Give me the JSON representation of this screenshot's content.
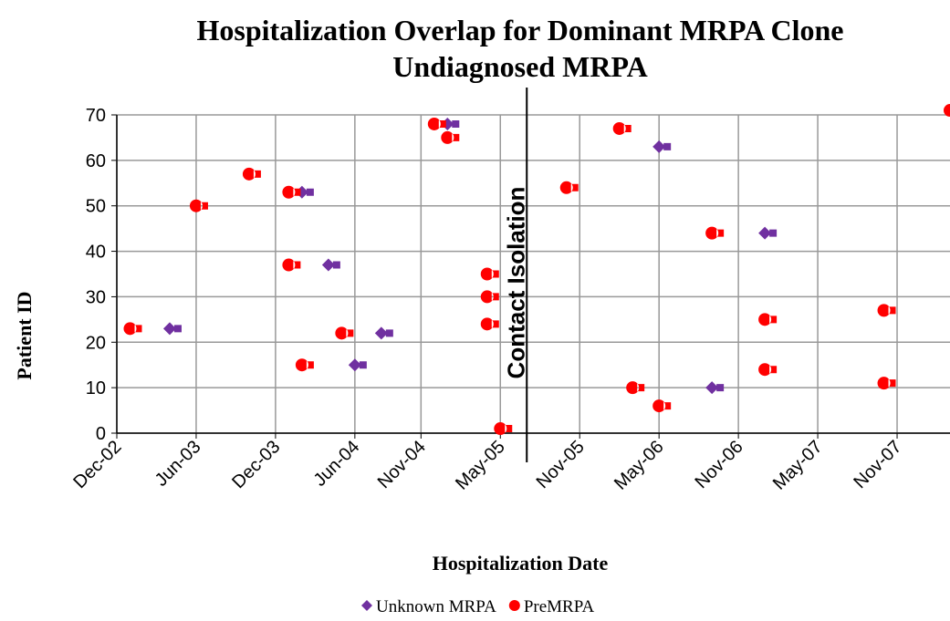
{
  "chart_data": {
    "type": "scatter",
    "title": "Hospitalization Overlap for Dominant MRPA Clone",
    "subtitle": "Undiagnosed MRPA",
    "x_label": "Hospitalization Date",
    "y_label": "Patient ID",
    "xlim": [
      "2002-12",
      "2008-03"
    ],
    "xticks": [
      {
        "value": "2002-12",
        "label": "Dec-02"
      },
      {
        "value": "2003-06",
        "label": "Jun-03"
      },
      {
        "value": "2003-12",
        "label": "Dec-03"
      },
      {
        "value": "2004-06",
        "label": "Jun-04"
      },
      {
        "value": "2004-11",
        "label": "Nov-04"
      },
      {
        "value": "2005-05",
        "label": "May-05"
      },
      {
        "value": "2005-11",
        "label": "Nov-05"
      },
      {
        "value": "2006-05",
        "label": "May-06"
      },
      {
        "value": "2006-11",
        "label": "Nov-06"
      },
      {
        "value": "2007-05",
        "label": "May-07"
      },
      {
        "value": "2007-11",
        "label": "Nov-07"
      }
    ],
    "ylim": [
      0,
      70
    ],
    "yticks": [
      0,
      10,
      20,
      30,
      40,
      50,
      60,
      70
    ],
    "grid": true,
    "legend": "bottom",
    "annotations": [
      {
        "text": "Contact Isolation",
        "x": "2005-07"
      }
    ],
    "series": [
      {
        "name": "Unknown MRPA",
        "color": "#7030a0",
        "marker": "diamond",
        "x": [
          "2003-04",
          "2004-02",
          "2004-04",
          "2004-06",
          "2004-08",
          "2005-01",
          "2006-05",
          "2006-09",
          "2007-01"
        ],
        "values": [
          23,
          53,
          37,
          15,
          22,
          68,
          63,
          10,
          44
        ]
      },
      {
        "name": "PreMRPA",
        "color": "#ff0000",
        "marker": "circle",
        "x": [
          "2003-01",
          "2003-06",
          "2003-10",
          "2004-01",
          "2004-01",
          "2004-02",
          "2004-05",
          "2004-12",
          "2005-01",
          "2005-04",
          "2005-04",
          "2005-04",
          "2005-05",
          "2005-10",
          "2006-02",
          "2006-03",
          "2006-05",
          "2006-09",
          "2007-01",
          "2007-01",
          "2007-10",
          "2007-10",
          "2008-03"
        ],
        "values": [
          23,
          50,
          57,
          53,
          37,
          15,
          22,
          68,
          65,
          30,
          35,
          24,
          1,
          54,
          67,
          10,
          6,
          44,
          25,
          14,
          27,
          11,
          71
        ]
      }
    ]
  }
}
